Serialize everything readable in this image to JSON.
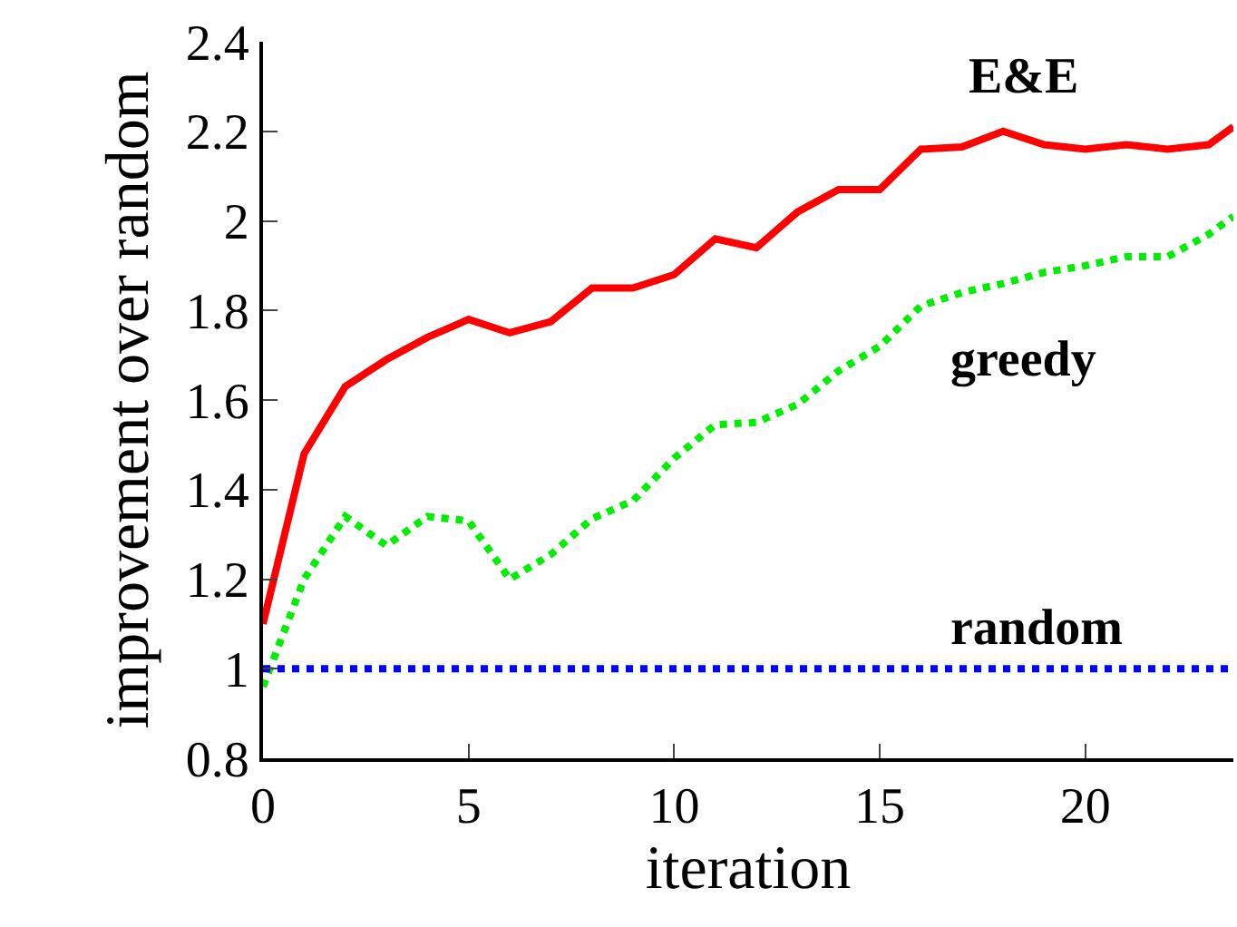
{
  "chart_data": {
    "type": "line",
    "xlabel": "iteration",
    "ylabel": "improvement over random",
    "xlim": [
      0,
      23.6
    ],
    "xticks": [
      0,
      5,
      10,
      15,
      20
    ],
    "ylim": [
      0.8,
      2.4
    ],
    "yticks": [
      0.8,
      1,
      1.2,
      1.4,
      1.6,
      1.8,
      2,
      2.2,
      2.4
    ],
    "grid": false,
    "legend": false,
    "marker": "none",
    "series": [
      {
        "name": "E&E",
        "color": "#ff0000",
        "line_style": "solid",
        "x": [
          0,
          1,
          2,
          3,
          4,
          5,
          6,
          7,
          8,
          9,
          10,
          11,
          12,
          13,
          14,
          15,
          16,
          17,
          18,
          19,
          20,
          21,
          22,
          23,
          23.6
        ],
        "values": [
          1.1,
          1.48,
          1.63,
          1.69,
          1.74,
          1.78,
          1.75,
          1.775,
          1.85,
          1.85,
          1.88,
          1.96,
          1.94,
          2.02,
          2.07,
          2.07,
          2.16,
          2.165,
          2.2,
          2.17,
          2.16,
          2.17,
          2.16,
          2.17,
          2.21
        ]
      },
      {
        "name": "greedy",
        "color": "#00ee00",
        "line_style": "dotted",
        "x": [
          0,
          1,
          2,
          3,
          4,
          5,
          6,
          7,
          8,
          9,
          10,
          11,
          12,
          13,
          14,
          15,
          16,
          17,
          18,
          19,
          20,
          21,
          22,
          23,
          23.6
        ],
        "values": [
          0.96,
          1.2,
          1.34,
          1.275,
          1.34,
          1.33,
          1.2,
          1.255,
          1.335,
          1.375,
          1.47,
          1.545,
          1.55,
          1.59,
          1.665,
          1.72,
          1.81,
          1.84,
          1.86,
          1.885,
          1.9,
          1.92,
          1.92,
          1.97,
          2.01
        ]
      },
      {
        "name": "random",
        "color": "#0000ff",
        "line_style": "dotted",
        "x": [
          0,
          23.6
        ],
        "values": [
          1,
          1
        ]
      }
    ]
  }
}
